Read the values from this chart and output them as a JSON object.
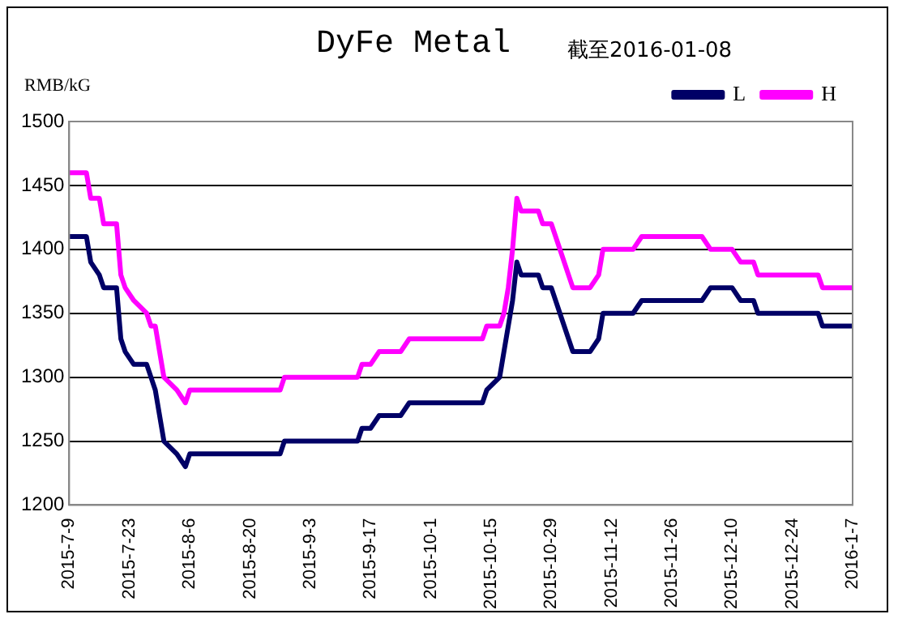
{
  "chart_data": {
    "type": "line",
    "title": "DyFe Metal",
    "subtitle": "截至2016-01-08",
    "ylabel": "RMB/kG",
    "x": [
      "2015-07-09",
      "2015-07-13",
      "2015-07-14",
      "2015-07-16",
      "2015-07-17",
      "2015-07-20",
      "2015-07-21",
      "2015-07-22",
      "2015-07-24",
      "2015-07-27",
      "2015-07-28",
      "2015-07-29",
      "2015-07-31",
      "2015-08-03",
      "2015-08-05",
      "2015-08-06",
      "2015-08-27",
      "2015-08-28",
      "2015-09-14",
      "2015-09-15",
      "2015-09-17",
      "2015-09-19",
      "2015-09-24",
      "2015-09-26",
      "2015-10-13",
      "2015-10-14",
      "2015-10-17",
      "2015-10-18",
      "2015-10-19",
      "2015-10-20",
      "2015-10-21",
      "2015-10-22",
      "2015-10-26",
      "2015-10-27",
      "2015-10-29",
      "2015-10-31",
      "2015-11-02",
      "2015-11-03",
      "2015-11-07",
      "2015-11-09",
      "2015-11-10",
      "2015-11-17",
      "2015-11-19",
      "2015-12-03",
      "2015-12-05",
      "2015-12-10",
      "2015-12-12",
      "2015-12-15",
      "2015-12-16",
      "2015-12-30",
      "2015-12-31",
      "2016-01-07"
    ],
    "series": [
      {
        "name": "L",
        "color": "#000066",
        "values": [
          1410,
          1410,
          1390,
          1380,
          1370,
          1370,
          1330,
          1320,
          1310,
          1310,
          1300,
          1290,
          1250,
          1240,
          1230,
          1240,
          1240,
          1250,
          1250,
          1260,
          1260,
          1270,
          1270,
          1280,
          1280,
          1290,
          1300,
          1320,
          1340,
          1360,
          1390,
          1380,
          1380,
          1370,
          1370,
          1350,
          1330,
          1320,
          1320,
          1330,
          1350,
          1350,
          1360,
          1360,
          1370,
          1370,
          1360,
          1360,
          1350,
          1350,
          1340,
          1340
        ]
      },
      {
        "name": "H",
        "color": "#ff00ff",
        "values": [
          1460,
          1460,
          1440,
          1440,
          1420,
          1420,
          1380,
          1370,
          1360,
          1350,
          1340,
          1340,
          1300,
          1290,
          1280,
          1290,
          1290,
          1300,
          1300,
          1310,
          1310,
          1320,
          1320,
          1330,
          1330,
          1340,
          1340,
          1350,
          1370,
          1400,
          1440,
          1430,
          1430,
          1420,
          1420,
          1400,
          1380,
          1370,
          1370,
          1380,
          1400,
          1400,
          1410,
          1410,
          1400,
          1400,
          1390,
          1390,
          1380,
          1380,
          1370,
          1370
        ]
      }
    ],
    "xlim": [
      "2015-07-09",
      "2016-01-07"
    ],
    "xticks": [
      {
        "value": "2015-07-09",
        "label": "2015-7-9"
      },
      {
        "value": "2015-07-23",
        "label": "2015-7-23"
      },
      {
        "value": "2015-08-06",
        "label": "2015-8-6"
      },
      {
        "value": "2015-08-20",
        "label": "2015-8-20"
      },
      {
        "value": "2015-09-03",
        "label": "2015-9-3"
      },
      {
        "value": "2015-09-17",
        "label": "2015-9-17"
      },
      {
        "value": "2015-10-01",
        "label": "2015-10-1"
      },
      {
        "value": "2015-10-15",
        "label": "2015-10-15"
      },
      {
        "value": "2015-10-29",
        "label": "2015-10-29"
      },
      {
        "value": "2015-11-12",
        "label": "2015-11-12"
      },
      {
        "value": "2015-11-26",
        "label": "2015-11-26"
      },
      {
        "value": "2015-12-10",
        "label": "2015-12-10"
      },
      {
        "value": "2015-12-24",
        "label": "2015-12-24"
      },
      {
        "value": "2016-01-07",
        "label": "2016-1-7"
      }
    ],
    "ylim": [
      1200,
      1500
    ],
    "yticks": [
      1200,
      1250,
      1300,
      1350,
      1400,
      1450,
      1500
    ],
    "grid": "y",
    "legend": "top right",
    "marker": "none",
    "line_style": "solid"
  }
}
